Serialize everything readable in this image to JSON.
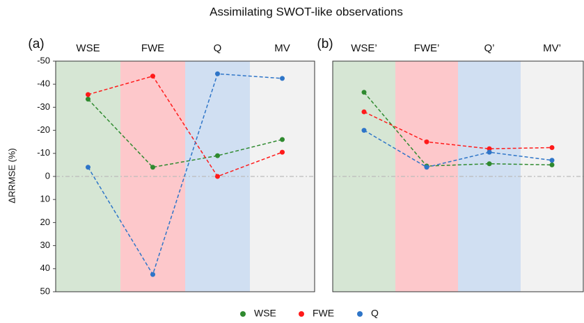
{
  "chart_data": [
    {
      "type": "line",
      "title": "Assimilating SWOT-like observations",
      "panel_label": "(a)",
      "ylabel": "ΔRRMSE (%)",
      "categories": [
        "WSE",
        "FWE",
        "Q",
        "MV"
      ],
      "band_colors": [
        "#d6e6d4",
        "#fdc8cb",
        "#d0dff2",
        "#f2f2f2"
      ],
      "series": [
        {
          "name": "WSE",
          "color": "#2f8a2f",
          "values": [
            -33.5,
            -4,
            -9,
            -16
          ]
        },
        {
          "name": "FWE",
          "color": "#ff1a1a",
          "values": [
            -35.5,
            -43.5,
            0,
            -10.5
          ]
        },
        {
          "name": "Q",
          "color": "#2e75c8",
          "values": [
            -4,
            42.5,
            -44.5,
            -42.5
          ]
        }
      ],
      "ylim": [
        -50,
        50
      ],
      "y_inverted": true,
      "yticks": [
        -50,
        -40,
        -30,
        -20,
        -10,
        0,
        10,
        20,
        30,
        40,
        50
      ],
      "zero_line": true
    },
    {
      "type": "line",
      "panel_label": "(b)",
      "categories": [
        "WSE’",
        "FWE’",
        "Q’",
        "MV’"
      ],
      "band_colors": [
        "#d6e6d4",
        "#fdc8cb",
        "#d0dff2",
        "#f2f2f2"
      ],
      "series": [
        {
          "color": "#2f8a2f",
          "values": [
            -36.5,
            -4.5,
            -5.5,
            -5
          ]
        },
        {
          "color": "#ff1a1a",
          "values": [
            -28,
            -15,
            -12,
            -12.5
          ]
        },
        {
          "color": "#2e75c8",
          "values": [
            -20,
            -4,
            -10.5,
            -7
          ]
        }
      ],
      "ylim": [
        -50,
        50
      ],
      "y_inverted": true,
      "zero_line": true
    }
  ]
}
